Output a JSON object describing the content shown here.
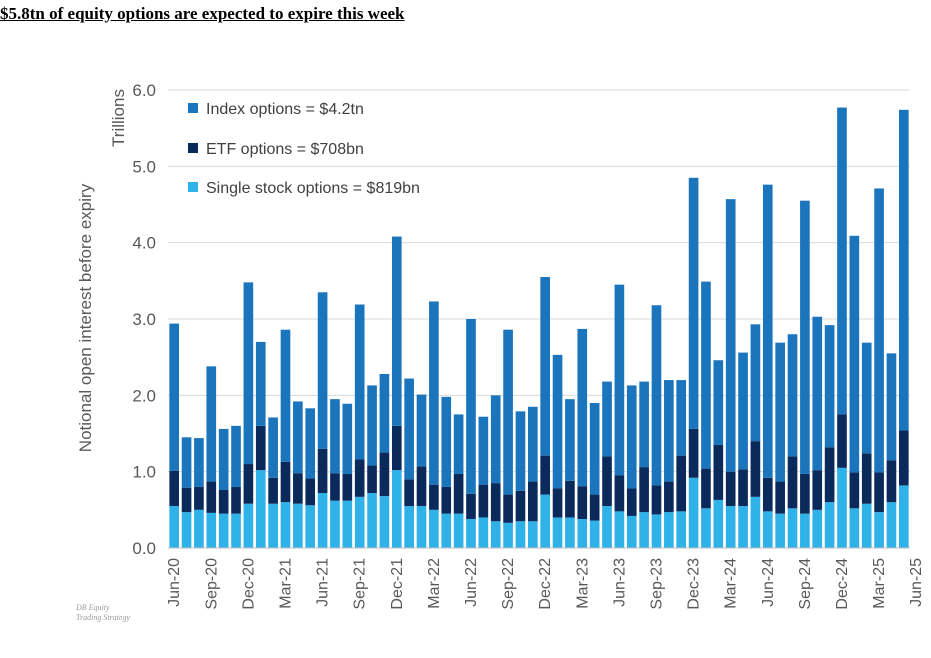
{
  "headline": "$5.8tn of equity options are expected to expire this week",
  "source": {
    "line1": "DB Equity",
    "line2": "Trading Strategy"
  },
  "colors": {
    "index": "#1b75bc",
    "etf": "#0b2a5c",
    "single": "#2fb2e8",
    "grid": "#d9d9d9",
    "text": "#595959"
  },
  "chart_data": {
    "type": "bar",
    "stacked": true,
    "title": "$5.8tn of equity options are expected to expire this week",
    "ylabel": "Notional open interest before expiry",
    "yunit": "Trillions",
    "ylim": [
      0,
      6
    ],
    "yticks": [
      "0.0",
      "1.0",
      "2.0",
      "3.0",
      "4.0",
      "5.0",
      "6.0"
    ],
    "xtick_labels": [
      "Jun-20",
      "Sep-20",
      "Dec-20",
      "Mar-21",
      "Jun-21",
      "Sep-21",
      "Dec-21",
      "Mar-22",
      "Jun-22",
      "Sep-22",
      "Dec-22",
      "Mar-23",
      "Jun-23",
      "Sep-23",
      "Dec-23",
      "Mar-24",
      "Jun-24",
      "Sep-24",
      "Dec-24",
      "Mar-25",
      "Jun-25"
    ],
    "legend_position": "top-left",
    "series": [
      {
        "name": "Single stock options = $819bn",
        "key": "single",
        "values": [
          0.55,
          0.47,
          0.5,
          0.46,
          0.45,
          0.45,
          0.58,
          1.02,
          0.58,
          0.6,
          0.58,
          0.56,
          0.72,
          0.62,
          0.62,
          0.67,
          0.72,
          0.68,
          1.02,
          0.55,
          0.55,
          0.5,
          0.45,
          0.45,
          0.38,
          0.4,
          0.35,
          0.33,
          0.35,
          0.35,
          0.7,
          0.4,
          0.4,
          0.38,
          0.36,
          0.55,
          0.48,
          0.42,
          0.47,
          0.44,
          0.47,
          0.48,
          0.92,
          0.52,
          0.63,
          0.55,
          0.55,
          0.67,
          0.48,
          0.45,
          0.52,
          0.45,
          0.5,
          0.6,
          1.05,
          0.52,
          0.58,
          0.47,
          0.6,
          0.82
        ]
      },
      {
        "name": "ETF options = $708bn",
        "key": "etf",
        "values": [
          0.46,
          0.32,
          0.3,
          0.41,
          0.31,
          0.35,
          0.52,
          0.58,
          0.34,
          0.53,
          0.4,
          0.35,
          0.58,
          0.36,
          0.35,
          0.49,
          0.36,
          0.57,
          0.58,
          0.35,
          0.52,
          0.33,
          0.35,
          0.52,
          0.33,
          0.43,
          0.5,
          0.37,
          0.4,
          0.52,
          0.51,
          0.38,
          0.48,
          0.43,
          0.34,
          0.65,
          0.47,
          0.36,
          0.59,
          0.38,
          0.4,
          0.73,
          0.64,
          0.52,
          0.72,
          0.45,
          0.48,
          0.73,
          0.44,
          0.42,
          0.68,
          0.52,
          0.52,
          0.72,
          0.7,
          0.47,
          0.66,
          0.52,
          0.55,
          0.72
        ]
      },
      {
        "name": "Index options = $4.2tn",
        "key": "index",
        "values": [
          1.93,
          0.66,
          0.64,
          1.51,
          0.8,
          0.8,
          2.38,
          1.1,
          0.79,
          1.73,
          0.94,
          0.92,
          2.05,
          0.97,
          0.92,
          2.03,
          1.05,
          1.03,
          2.48,
          1.32,
          0.94,
          2.4,
          1.18,
          0.78,
          2.29,
          0.89,
          1.15,
          2.16,
          1.04,
          0.98,
          2.34,
          1.75,
          1.07,
          2.06,
          1.2,
          0.98,
          2.5,
          1.35,
          1.12,
          2.36,
          1.33,
          0.99,
          3.29,
          2.45,
          1.11,
          3.57,
          1.53,
          1.53,
          3.84,
          1.82,
          1.6,
          3.58,
          2.01,
          1.6,
          4.02,
          3.1,
          1.45,
          3.72,
          1.4,
          4.2
        ]
      }
    ]
  }
}
